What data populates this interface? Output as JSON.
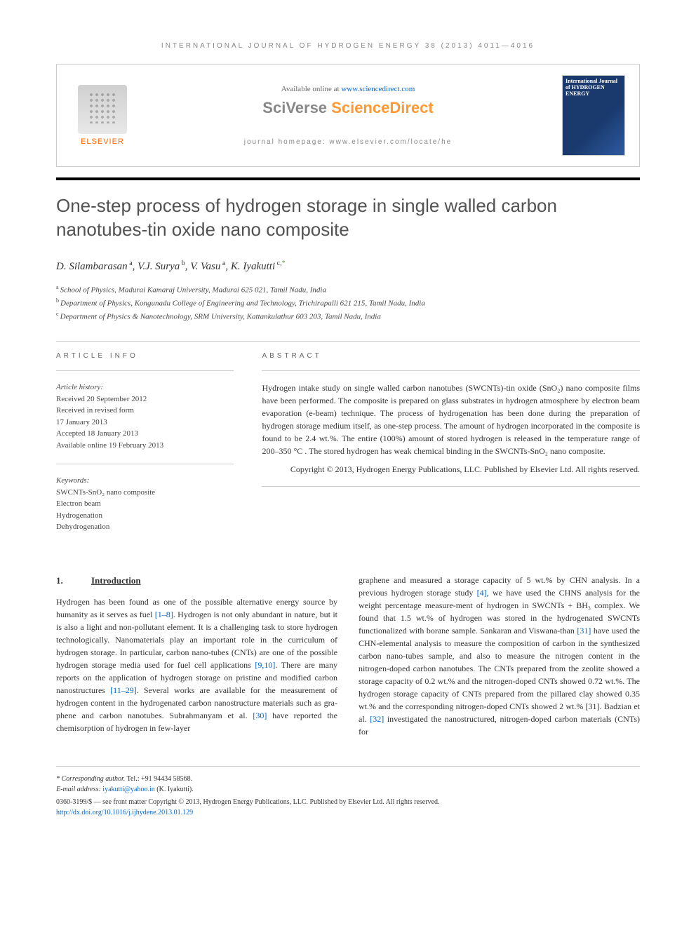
{
  "header": {
    "journal_line": "INTERNATIONAL JOURNAL OF HYDROGEN ENERGY 38 (2013) 4011—4016",
    "available_prefix": "Available online at ",
    "available_link": "www.sciencedirect.com",
    "sciverse_sci": "SciVerse ",
    "sciverse_direct": "ScienceDirect",
    "homepage": "journal homepage: www.elsevier.com/locate/he",
    "elsevier": "ELSEVIER",
    "cover_label": "International Journal of HYDROGEN ENERGY"
  },
  "title": "One-step process of hydrogen storage in single walled carbon nanotubes-tin oxide nano composite",
  "authors": [
    {
      "name": "D. Silambarasan",
      "aff": "a"
    },
    {
      "name": "V.J. Surya",
      "aff": "b"
    },
    {
      "name": "V. Vasu",
      "aff": "a"
    },
    {
      "name": "K. Iyakutti",
      "aff": "c,",
      "corr": "*"
    }
  ],
  "affiliations": [
    {
      "sup": "a",
      "text": "School of Physics, Madurai Kamaraj University, Madurai 625 021, Tamil Nadu, India"
    },
    {
      "sup": "b",
      "text": "Department of Physics, Kongunadu College of Engineering and Technology, Trichirapalli 621 215, Tamil Nadu, India"
    },
    {
      "sup": "c",
      "text": "Department of Physics & Nanotechnology, SRM University, Kattankulathur 603 203, Tamil Nadu, India"
    }
  ],
  "info": {
    "label": "ARTICLE INFO",
    "history_label": "Article history:",
    "history": [
      "Received 20 September 2012",
      "Received in revised form",
      "17 January 2013",
      "Accepted 18 January 2013",
      "Available online 19 February 2013"
    ],
    "keywords_label": "Keywords:",
    "keywords": [
      "SWCNTs-SnO₂ nano composite",
      "Electron beam",
      "Hydrogenation",
      "Dehydrogenation"
    ]
  },
  "abstract": {
    "label": "ABSTRACT",
    "text": "Hydrogen intake study on single walled carbon nanotubes (SWCNTs)-tin oxide (SnO₂) nano composite films have been performed. The composite is prepared on glass substrates in hydrogen atmosphere by electron beam evaporation (e-beam) technique. The process of hydrogenation has been done during the preparation of hydrogen storage medium itself, as one-step process. The amount of hydrogen incorporated in the composite is found to be 2.4 wt.%. The entire (100%) amount of stored hydrogen is released in the temperature range of 200–350 °C . The stored hydrogen has weak chemical binding in the SWCNTs-SnO₂ nano composite.",
    "copyright": "Copyright © 2013, Hydrogen Energy Publications, LLC. Published by Elsevier Ltd. All rights reserved."
  },
  "body": {
    "section_num": "1.",
    "section_title": "Introduction",
    "col1": "Hydrogen has been found as one of the possible alternative energy source by humanity as it serves as fuel [1–8]. Hydrogen is not only abundant in nature, but it is also a light and non-pollutant element. It is a challenging task to store hydrogen technologically. Nanomaterials play an important role in the curriculum of hydrogen storage. In particular, carbon nano-tubes (CNTs) are one of the possible hydrogen storage media used for fuel cell applications [9,10]. There are many reports on the application of hydrogen storage on pristine and modified carbon nanostructures [11–29]. Several works are available for the measurement of hydrogen content in the hydrogenated carbon nanostructure materials such as gra-phene and carbon nanotubes. Subrahmanyam et al. [30] have reported the chemisorption of hydrogen in few-layer",
    "col2": "graphene and measured a storage capacity of 5 wt.% by CHN analysis. In a previous hydrogen storage study [4], we have used the CHNS analysis for the weight percentage measure-ment of hydrogen in SWCNTs + BH₃ complex. We found that 1.5 wt.% of hydrogen was stored in the hydrogenated SWCNTs functionalized with borane sample. Sankaran and Viswana-than [31] have used the CHN-elemental analysis to measure the composition of carbon in the synthesized carbon nano-tubes sample, and also to measure the nitrogen content in the nitrogen-doped carbon nanotubes. The CNTs prepared from the zeolite showed a storage capacity of 0.2 wt.% and the nitrogen-doped CNTs showed 0.72 wt.%. The hydrogen storage capacity of CNTs prepared from the pillared clay showed 0.35 wt.% and the corresponding nitrogen-doped CNTs showed 2 wt.% [31]. Badzian et al. [32] investigated the nanostructured, nitrogen-doped carbon materials (CNTs) for",
    "refs_col1": [
      "[1–8]",
      "[9,10]",
      "[11–29]",
      "[30]"
    ],
    "refs_col2": [
      "[4]",
      "[31]",
      "[31]",
      "[32]"
    ]
  },
  "footer": {
    "corr_label": "* Corresponding author.",
    "corr_tel": " Tel.: +91 94434 58568.",
    "email_label": "E-mail address: ",
    "email": "iyakutti@yahoo.in",
    "email_name": " (K. Iyakutti).",
    "issn": "0360-3199/$ — see front matter Copyright © 2013, Hydrogen Energy Publications, LLC. Published by Elsevier Ltd. All rights reserved.",
    "doi": "http://dx.doi.org/10.1016/j.ijhydene.2013.01.129"
  },
  "colors": {
    "link": "#0066cc",
    "elsevier_orange": "#ff6600",
    "scidirect_orange": "#ff9933",
    "green_star": "#5a9e3e",
    "text": "#333333",
    "muted": "#888888",
    "cover_blue": "#1a3a6e"
  }
}
